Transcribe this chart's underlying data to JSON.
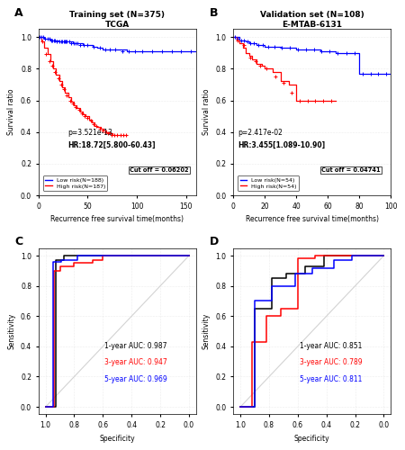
{
  "panel_A": {
    "title": "Training set (N=375)",
    "subtitle": "TCGA",
    "xlabel": "Recurrence free survival time(months)",
    "ylabel": "Survival ratio",
    "p_value": "p=3.521e-13",
    "hr": "HR:18.72[5.800-60.43]",
    "cutoff": "Cut off = 0.06202",
    "legend": [
      "Low risk(N=188)",
      "High risk(N=187)"
    ],
    "xlim": [
      0,
      160
    ],
    "ylim": [
      0,
      1.05
    ],
    "xticks": [
      0,
      50,
      100,
      150
    ],
    "yticks": [
      0.0,
      0.2,
      0.4,
      0.6,
      0.8,
      1.0
    ]
  },
  "panel_B": {
    "title": "Validation set (N=108)",
    "subtitle": "E-MTAB-6131",
    "xlabel": "Recurrence free survival time(months)",
    "ylabel": "Survival ratio",
    "p_value": "p=2.417e-02",
    "hr": "HR:3.455[1.089-10.90]",
    "cutoff": "Cut off = 0.04741",
    "legend": [
      "Low risk(N=54)",
      "High risk(N=54)"
    ],
    "xlim": [
      0,
      100
    ],
    "ylim": [
      0,
      1.05
    ],
    "xticks": [
      0,
      20,
      40,
      60,
      80,
      100
    ],
    "yticks": [
      0.0,
      0.2,
      0.4,
      0.6,
      0.8,
      1.0
    ]
  },
  "panel_C": {
    "xlabel": "Specificity",
    "ylabel": "Sensitivity",
    "auc_1yr": "1-year AUC: 0.987",
    "auc_3yr": "3-year AUC: 0.947",
    "auc_5yr": "5-year AUC: 0.969"
  },
  "panel_D": {
    "xlabel": "Specificity",
    "ylabel": "Sensitivity",
    "auc_1yr": "1-year AUC: 0.851",
    "auc_3yr": "3-year AUC: 0.789",
    "auc_5yr": "5-year AUC: 0.811"
  }
}
